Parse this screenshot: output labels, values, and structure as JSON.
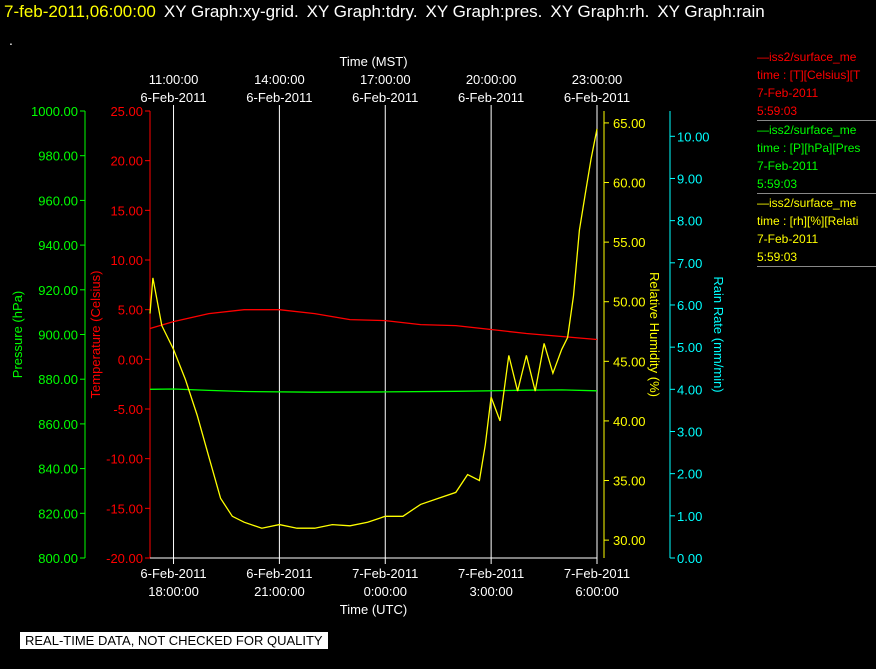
{
  "header": {
    "timestamp": "7-feb-2011,06:00:00",
    "graph_titles": [
      "XY Graph:xy-grid.",
      "XY Graph:tdry.",
      "XY Graph:pres.",
      "XY Graph:rh.",
      "XY Graph:rain"
    ],
    "dot": "."
  },
  "footer": {
    "notice": "REAL-TIME DATA, NOT CHECKED FOR QUALITY"
  },
  "colors": {
    "temperature": "#ff0000",
    "pressure": "#00ff00",
    "humidity": "#ffff00",
    "rain": "#00ffff",
    "grid": "#ffffff",
    "background": "#000000"
  },
  "legend": [
    {
      "name": "—iss2/surface_me",
      "units": "time : [T][Celsius][T",
      "date": "7-Feb-2011",
      "time": "5:59:03",
      "color": "#ff0000"
    },
    {
      "name": "—iss2/surface_me",
      "units": "time : [P][hPa][Pres",
      "date": "7-Feb-2011",
      "time": "5:59:03",
      "color": "#00ff00"
    },
    {
      "name": "—iss2/surface_me",
      "units": "time : [rh][%][Relati",
      "date": "7-Feb-2011",
      "time": "5:59:03",
      "color": "#ffff00"
    }
  ],
  "chart_data": {
    "type": "line",
    "xlabel_bottom": "Time (UTC)",
    "xlabel_top": "Time (MST)",
    "x_range_hours_utc": [
      "6-Feb-2011 17:20",
      "7-Feb-2011 6:00"
    ],
    "x_ticks_bottom": [
      {
        "date": "6-Feb-2011",
        "time": "18:00:00",
        "utc": "2011-02-06 18:00"
      },
      {
        "date": "6-Feb-2011",
        "time": "21:00:00",
        "utc": "2011-02-06 21:00"
      },
      {
        "date": "7-Feb-2011",
        "time": "0:00:00",
        "utc": "2011-02-07 00:00"
      },
      {
        "date": "7-Feb-2011",
        "time": "3:00:00",
        "utc": "2011-02-07 03:00"
      },
      {
        "date": "7-Feb-2011",
        "time": "6:00:00",
        "utc": "2011-02-07 06:00"
      }
    ],
    "x_ticks_top": [
      {
        "time": "11:00:00",
        "date": "6-Feb-2011",
        "utc": "2011-02-06 18:00"
      },
      {
        "time": "14:00:00",
        "date": "6-Feb-2011",
        "utc": "2011-02-06 21:00"
      },
      {
        "time": "17:00:00",
        "date": "6-Feb-2011",
        "utc": "2011-02-07 00:00"
      },
      {
        "time": "20:00:00",
        "date": "6-Feb-2011",
        "utc": "2011-02-07 03:00"
      },
      {
        "time": "23:00:00",
        "date": "6-Feb-2011",
        "utc": "2011-02-07 06:00"
      }
    ],
    "grid": true,
    "axes": {
      "pressure": {
        "label": "Pressure (hPa)",
        "range": [
          800,
          1000
        ],
        "ticks": [
          "800.00",
          "820.00",
          "840.00",
          "860.00",
          "880.00",
          "900.00",
          "920.00",
          "940.00",
          "960.00",
          "980.00",
          "1000.00"
        ]
      },
      "temperature": {
        "label": "Temperature (Celsius)",
        "range": [
          -20,
          25
        ],
        "ticks": [
          "-20.00",
          "-15.00",
          "-10.00",
          "-5.00",
          "0.00",
          "5.00",
          "10.00",
          "15.00",
          "20.00",
          "25.00"
        ]
      },
      "humidity": {
        "label": "Relative Humidity (%)",
        "range": [
          28.5,
          66
        ],
        "ticks": [
          "30.00",
          "35.00",
          "40.00",
          "45.00",
          "50.00",
          "55.00",
          "60.00",
          "65.00"
        ]
      },
      "rain": {
        "label": "Rain Rate (mm/min)",
        "range": [
          0,
          10.6
        ],
        "ticks": [
          "0.00",
          "1.00",
          "2.00",
          "3.00",
          "4.00",
          "5.00",
          "6.00",
          "7.00",
          "8.00",
          "9.00",
          "10.00"
        ]
      }
    },
    "series": [
      {
        "name": "iss2/surface_me Temperature",
        "axis": "temperature",
        "x": [
          "2011-02-06 17:20",
          "2011-02-06 18:00",
          "2011-02-06 19:00",
          "2011-02-06 20:00",
          "2011-02-06 21:00",
          "2011-02-06 22:00",
          "2011-02-06 23:00",
          "2011-02-07 00:00",
          "2011-02-07 01:00",
          "2011-02-07 02:00",
          "2011-02-07 03:00",
          "2011-02-07 04:00",
          "2011-02-07 05:00",
          "2011-02-07 06:00"
        ],
        "values": [
          3.1,
          3.8,
          4.6,
          5.0,
          5.0,
          4.6,
          4.0,
          3.9,
          3.5,
          3.4,
          3.0,
          2.6,
          2.3,
          2.0
        ]
      },
      {
        "name": "iss2/surface_me Pressure",
        "axis": "pressure",
        "x": [
          "2011-02-06 17:20",
          "2011-02-06 18:00",
          "2011-02-06 19:00",
          "2011-02-06 20:00",
          "2011-02-06 22:00",
          "2011-02-07 00:00",
          "2011-02-07 02:00",
          "2011-02-07 04:00",
          "2011-02-07 05:00",
          "2011-02-07 06:00"
        ],
        "values": [
          875.5,
          875.6,
          875.0,
          874.5,
          874.2,
          874.3,
          874.6,
          875.1,
          875.2,
          874.8
        ]
      },
      {
        "name": "iss2/surface_me Relative Humidity",
        "axis": "humidity",
        "x": [
          "2011-02-06 17:20",
          "2011-02-06 17:25",
          "2011-02-06 17:40",
          "2011-02-06 18:00",
          "2011-02-06 18:20",
          "2011-02-06 18:40",
          "2011-02-06 19:00",
          "2011-02-06 19:20",
          "2011-02-06 19:40",
          "2011-02-06 20:00",
          "2011-02-06 20:30",
          "2011-02-06 21:00",
          "2011-02-06 21:30",
          "2011-02-06 22:00",
          "2011-02-06 22:30",
          "2011-02-06 23:00",
          "2011-02-06 23:30",
          "2011-02-07 00:00",
          "2011-02-07 00:30",
          "2011-02-07 01:00",
          "2011-02-07 01:30",
          "2011-02-07 02:00",
          "2011-02-07 02:20",
          "2011-02-07 02:40",
          "2011-02-07 02:50",
          "2011-02-07 03:00",
          "2011-02-07 03:15",
          "2011-02-07 03:30",
          "2011-02-07 03:45",
          "2011-02-07 04:00",
          "2011-02-07 04:15",
          "2011-02-07 04:30",
          "2011-02-07 04:45",
          "2011-02-07 05:00",
          "2011-02-07 05:10",
          "2011-02-07 05:20",
          "2011-02-07 05:30",
          "2011-02-07 05:40",
          "2011-02-07 05:50",
          "2011-02-07 06:00"
        ],
        "values": [
          49.0,
          52.0,
          48.0,
          46.0,
          43.5,
          40.5,
          37.0,
          33.5,
          32.0,
          31.5,
          31.0,
          31.3,
          31.0,
          31.0,
          31.3,
          31.2,
          31.5,
          32.0,
          32.0,
          33.0,
          33.5,
          34.0,
          35.5,
          35.0,
          38.0,
          42.0,
          40.0,
          45.5,
          42.5,
          45.5,
          42.5,
          46.5,
          44.0,
          46.0,
          47.0,
          50.5,
          56.0,
          59.0,
          62.0,
          64.5
        ]
      }
    ]
  }
}
